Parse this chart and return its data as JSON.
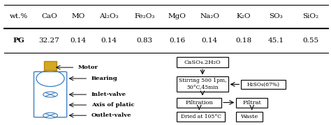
{
  "col_headers": [
    "wt.%",
    "CaO",
    "MO",
    "Al₂O₃",
    "Fe₂O₃",
    "MgO",
    "Na₂O",
    "K₂O",
    "SO₃",
    "SiO₂"
  ],
  "row_label": "PG",
  "row_values": [
    "32.27",
    "0.14",
    "0.14",
    "0.83",
    "0.16",
    "0.14",
    "0.18",
    "45.1",
    "0.55"
  ],
  "bg_color": "#ffffff",
  "header_line_color": "#000000",
  "text_color": "#000000",
  "font_size": 7.5,
  "apparatus_labels": [
    "Motor",
    "Bearing",
    "Inlet-valve",
    "Axis of platic",
    "Outlet-valve"
  ],
  "apparatus_color": "#3a7fc1",
  "motor_color_edge": "#b8860b",
  "motor_color_face": "#d4a820",
  "flowchart_box1": "CaSO₄.2H₂O",
  "flowchart_box2": "Stirring 500 1pm,\n50°C,45min",
  "flowchart_box3": "H₂SO₄(67%)",
  "flowchart_box4": "Filtration",
  "flowchart_box5": "Filtrat",
  "flowchart_box6": "Dried at 105°C",
  "flowchart_box7": "Waste"
}
